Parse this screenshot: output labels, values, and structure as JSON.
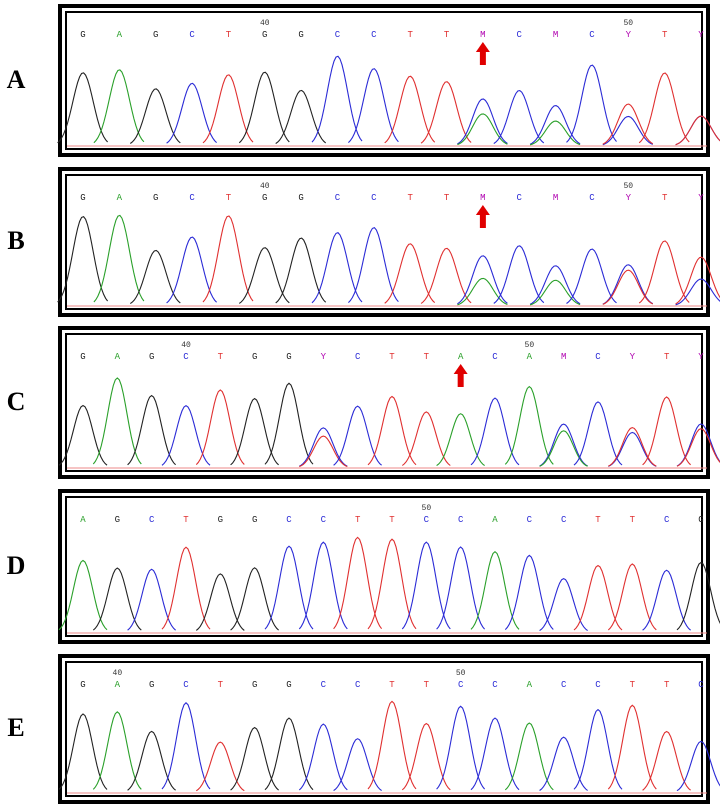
{
  "colors": {
    "G": "#222222",
    "A": "#2aa02a",
    "C": "#2b2bd6",
    "T": "#e03030",
    "Y": "#b000b0",
    "M": "#b000b0",
    "arrow": "#e00000"
  },
  "panels": [
    {
      "label": "A",
      "bases": "GAGCTGGCCTTMCMCYTY",
      "pos_marks": [
        {
          "text": "40",
          "index": 5
        },
        {
          "text": "50",
          "index": 15
        }
      ],
      "arrow_index": 11
    },
    {
      "label": "B",
      "bases": "GAGCTGGCCTTMCMCYTY",
      "pos_marks": [
        {
          "text": "40",
          "index": 5
        },
        {
          "text": "50",
          "index": 15
        }
      ],
      "arrow_index": 11
    },
    {
      "label": "C",
      "bases": "GAGCTGGYCTTACAMCYTY",
      "pos_marks": [
        {
          "text": "40",
          "index": 3
        },
        {
          "text": "50",
          "index": 13
        }
      ],
      "arrow_index": 11
    },
    {
      "label": "D",
      "bases": "AGCTGGCCTTCCACCTTCG",
      "pos_marks": [
        {
          "text": "50",
          "index": 10
        }
      ],
      "arrow_index": null
    },
    {
      "label": "E",
      "bases": "GAGCTGGCCTTCCACCTTC",
      "pos_marks": [
        {
          "text": "40",
          "index": 1
        },
        {
          "text": "50",
          "index": 11
        }
      ],
      "arrow_index": null
    }
  ]
}
